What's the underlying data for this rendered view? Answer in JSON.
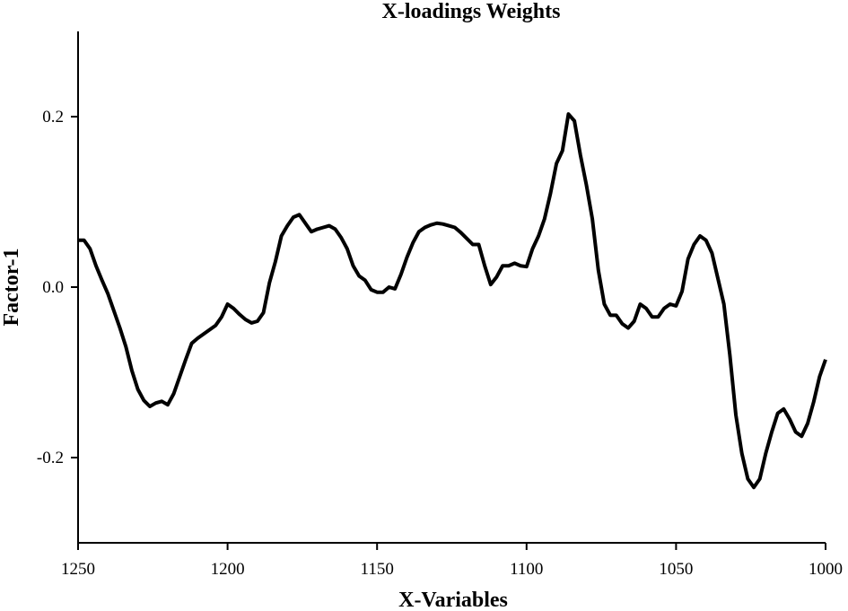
{
  "chart_data": {
    "type": "line",
    "title": "X-loadings Weights",
    "x_label": "X-Variables",
    "y_label": "Factor-1",
    "x": [
      1250,
      1248,
      1246,
      1244,
      1242,
      1240,
      1238,
      1236,
      1234,
      1232,
      1230,
      1228,
      1226,
      1224,
      1222,
      1220,
      1218,
      1216,
      1214,
      1212,
      1210,
      1208,
      1206,
      1204,
      1202,
      1200,
      1198,
      1196,
      1194,
      1192,
      1190,
      1188,
      1186,
      1184,
      1182,
      1180,
      1178,
      1176,
      1174,
      1172,
      1170,
      1168,
      1166,
      1164,
      1162,
      1160,
      1158,
      1156,
      1154,
      1152,
      1150,
      1148,
      1146,
      1144,
      1142,
      1140,
      1138,
      1136,
      1134,
      1132,
      1130,
      1128,
      1126,
      1124,
      1122,
      1120,
      1118,
      1116,
      1114,
      1112,
      1110,
      1108,
      1106,
      1104,
      1102,
      1100,
      1098,
      1096,
      1094,
      1092,
      1090,
      1088,
      1086,
      1084,
      1082,
      1080,
      1078,
      1076,
      1074,
      1072,
      1070,
      1068,
      1066,
      1064,
      1062,
      1060,
      1058,
      1056,
      1054,
      1052,
      1050,
      1048,
      1046,
      1044,
      1042,
      1040,
      1038,
      1036,
      1034,
      1032,
      1030,
      1028,
      1026,
      1024,
      1022,
      1020,
      1018,
      1016,
      1014,
      1012,
      1010,
      1008,
      1006,
      1004,
      1002,
      1000
    ],
    "series": [
      {
        "name": "Factor-1",
        "color": "#000000",
        "values": [
          0.055,
          0.055,
          0.045,
          0.025,
          0.008,
          -0.008,
          -0.028,
          -0.048,
          -0.07,
          -0.098,
          -0.12,
          -0.133,
          -0.14,
          -0.136,
          -0.134,
          -0.138,
          -0.125,
          -0.105,
          -0.085,
          -0.066,
          -0.06,
          -0.055,
          -0.05,
          -0.045,
          -0.035,
          -0.02,
          -0.025,
          -0.032,
          -0.038,
          -0.042,
          -0.04,
          -0.03,
          0.005,
          0.03,
          0.06,
          0.072,
          0.082,
          0.085,
          0.075,
          0.065,
          0.068,
          0.07,
          0.072,
          0.068,
          0.058,
          0.045,
          0.025,
          0.013,
          0.008,
          -0.003,
          -0.006,
          -0.006,
          0,
          -0.002,
          0.015,
          0.035,
          0.052,
          0.065,
          0.07,
          0.073,
          0.075,
          0.074,
          0.072,
          0.07,
          0.064,
          0.057,
          0.05,
          0.05,
          0.025,
          0.003,
          0.012,
          0.025,
          0.025,
          0.028,
          0.025,
          0.024,
          0.045,
          0.06,
          0.08,
          0.11,
          0.145,
          0.16,
          0.203,
          0.195,
          0.155,
          0.12,
          0.08,
          0.02,
          -0.02,
          -0.033,
          -0.033,
          -0.043,
          -0.048,
          -0.04,
          -0.02,
          -0.025,
          -0.035,
          -0.035,
          -0.025,
          -0.02,
          -0.022,
          -0.005,
          0.033,
          0.05,
          0.06,
          0.055,
          0.04,
          0.01,
          -0.02,
          -0.08,
          -0.15,
          -0.195,
          -0.225,
          -0.235,
          -0.225,
          -0.195,
          -0.17,
          -0.148,
          -0.143,
          -0.155,
          -0.17,
          -0.175,
          -0.16,
          -0.135,
          -0.105,
          -0.085
        ]
      }
    ],
    "xlim": [
      1250,
      1000
    ],
    "xticks": [
      1250,
      1200,
      1150,
      1100,
      1050,
      1000
    ],
    "ylim": [
      -0.3,
      0.3
    ],
    "yticks": [
      -0.2,
      {
        "value": 0,
        "label": "0.0"
      },
      0.2
    ]
  }
}
